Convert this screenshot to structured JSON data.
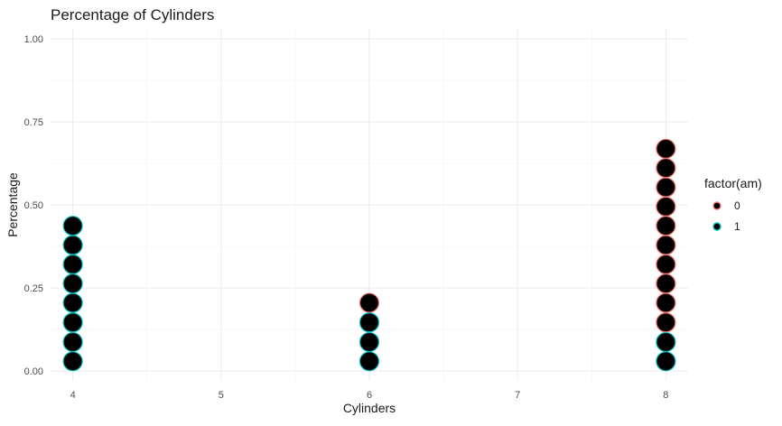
{
  "chart_data": {
    "type": "scatter",
    "title": "Percentage of Cylinders",
    "xlabel": "Cylinders",
    "ylabel": "Percentage",
    "xlim": [
      3.85,
      8.15
    ],
    "ylim": [
      -0.03,
      1.03
    ],
    "x_ticks": [
      "4",
      "5",
      "6",
      "7",
      "8"
    ],
    "y_ticks": [
      "0.00",
      "0.25",
      "0.50",
      "0.75",
      "1.00"
    ],
    "grid": true,
    "point_fill": "#000000",
    "legend": {
      "title": "factor(am)",
      "position": "right",
      "entries": [
        {
          "label": "0",
          "color": "#F8766D"
        },
        {
          "label": "1",
          "color": "#00BFC4"
        }
      ]
    },
    "series": [
      {
        "group": "0",
        "color": "#F8766D",
        "points": [
          {
            "x": 6,
            "y": 0.205
          },
          {
            "x": 8,
            "y": 0.146
          },
          {
            "x": 8,
            "y": 0.205
          },
          {
            "x": 8,
            "y": 0.263
          },
          {
            "x": 8,
            "y": 0.321
          },
          {
            "x": 8,
            "y": 0.379
          },
          {
            "x": 8,
            "y": 0.437
          },
          {
            "x": 8,
            "y": 0.495
          },
          {
            "x": 8,
            "y": 0.553
          },
          {
            "x": 8,
            "y": 0.611
          },
          {
            "x": 8,
            "y": 0.669
          }
        ]
      },
      {
        "group": "1",
        "color": "#00BFC4",
        "points": [
          {
            "x": 4,
            "y": 0.029
          },
          {
            "x": 4,
            "y": 0.087
          },
          {
            "x": 4,
            "y": 0.146
          },
          {
            "x": 4,
            "y": 0.205
          },
          {
            "x": 4,
            "y": 0.263
          },
          {
            "x": 4,
            "y": 0.321
          },
          {
            "x": 4,
            "y": 0.379
          },
          {
            "x": 4,
            "y": 0.437
          },
          {
            "x": 6,
            "y": 0.029
          },
          {
            "x": 6,
            "y": 0.087
          },
          {
            "x": 6,
            "y": 0.146
          },
          {
            "x": 8,
            "y": 0.029
          },
          {
            "x": 8,
            "y": 0.087
          }
        ]
      }
    ]
  }
}
